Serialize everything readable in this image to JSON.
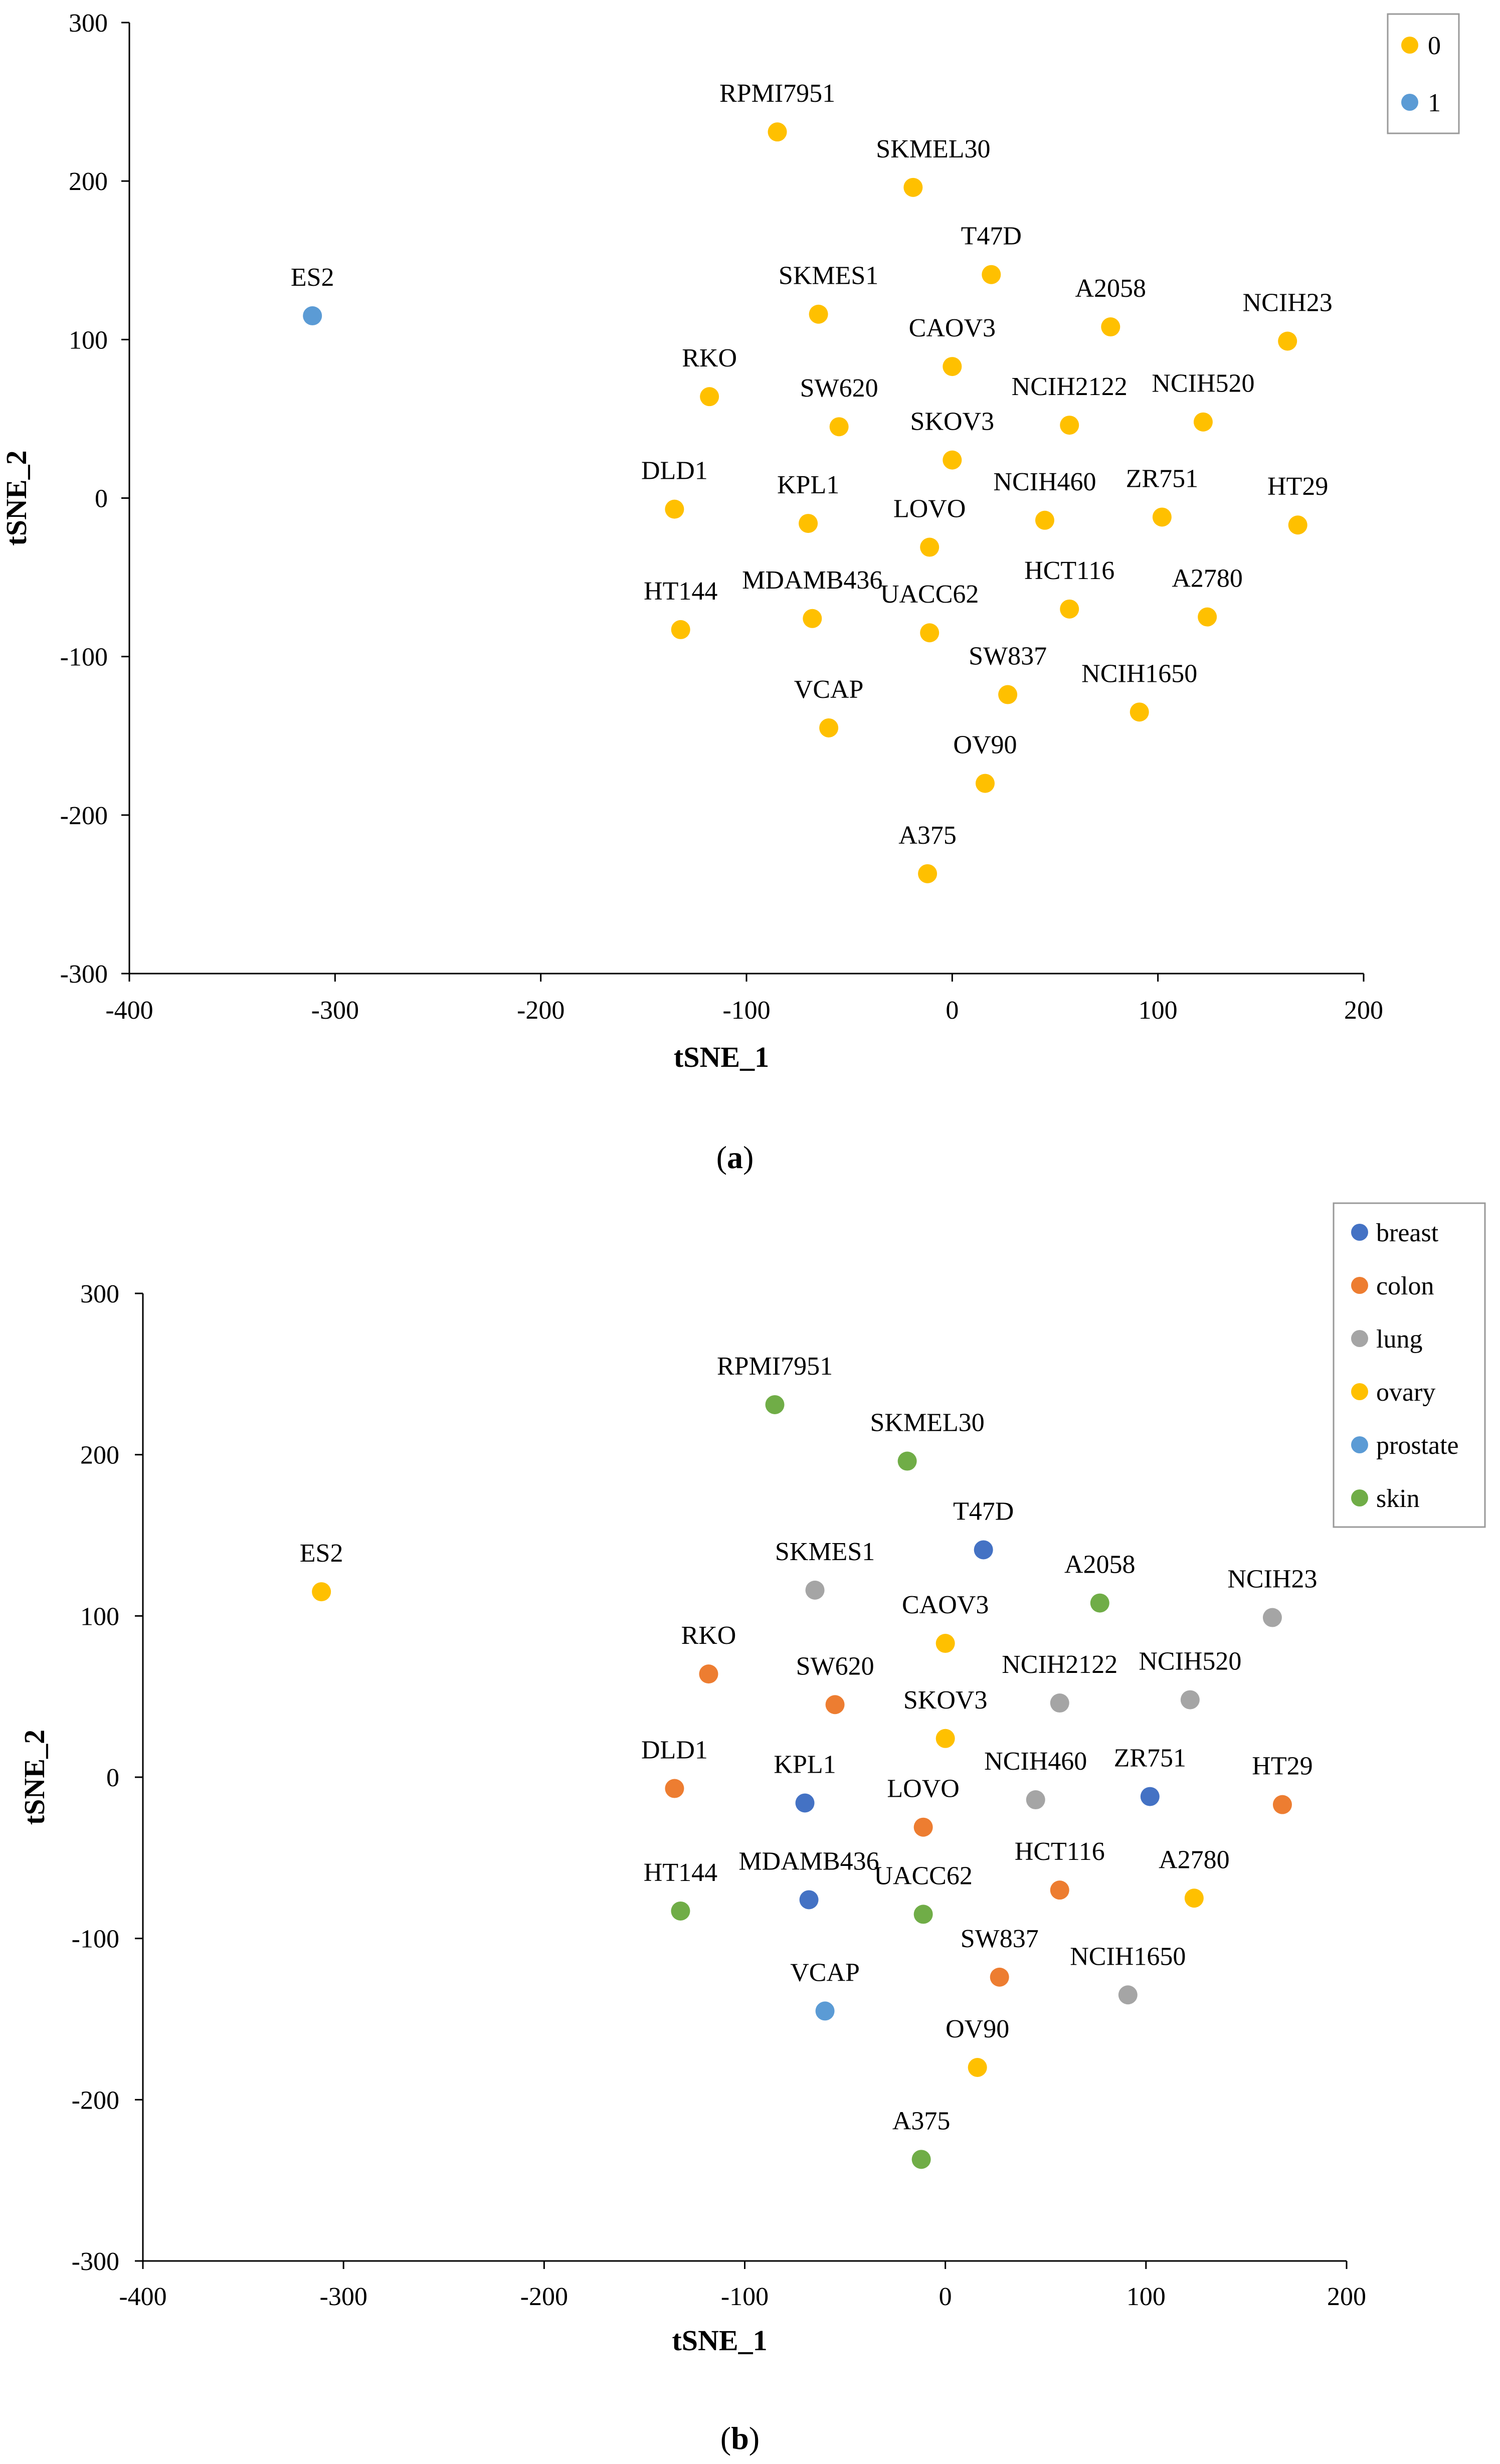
{
  "chart_data": [
    {
      "type": "scatter",
      "panel": "a",
      "caption_open": "(",
      "caption_letter": "a",
      "caption_close": ")",
      "xlabel": "tSNE_1",
      "ylabel": "tSNE_2",
      "xlim": [
        -400,
        200
      ],
      "ylim": [
        -300,
        300
      ],
      "xticks": [
        -400,
        -300,
        -200,
        -100,
        0,
        100,
        200
      ],
      "yticks": [
        -300,
        -200,
        -100,
        0,
        100,
        200,
        300
      ],
      "legend_position": "top-right",
      "legend": [
        {
          "name": "0",
          "color": "#FFC000"
        },
        {
          "name": "1",
          "color": "#5B9BD5"
        }
      ],
      "points": [
        {
          "label": "RPMI7951",
          "x": -85,
          "y": 231,
          "group": "0"
        },
        {
          "label": "SKMEL30",
          "x": -19,
          "y": 196,
          "group": "0"
        },
        {
          "label": "T47D",
          "x": 19,
          "y": 141,
          "group": "0"
        },
        {
          "label": "SKMES1",
          "x": -65,
          "y": 116,
          "group": "0"
        },
        {
          "label": "A2058",
          "x": 77,
          "y": 108,
          "group": "0"
        },
        {
          "label": "NCIH23",
          "x": 163,
          "y": 99,
          "group": "0"
        },
        {
          "label": "CAOV3",
          "x": 0,
          "y": 83,
          "group": "0"
        },
        {
          "label": "RKO",
          "x": -118,
          "y": 64,
          "group": "0"
        },
        {
          "label": "SW620",
          "x": -55,
          "y": 45,
          "group": "0"
        },
        {
          "label": "NCIH2122",
          "x": 57,
          "y": 46,
          "group": "0"
        },
        {
          "label": "NCIH520",
          "x": 122,
          "y": 48,
          "group": "0"
        },
        {
          "label": "SKOV3",
          "x": 0,
          "y": 24,
          "group": "0"
        },
        {
          "label": "DLD1",
          "x": -135,
          "y": -7,
          "group": "0"
        },
        {
          "label": "KPL1",
          "x": -70,
          "y": -16,
          "group": "0"
        },
        {
          "label": "NCIH460",
          "x": 45,
          "y": -14,
          "group": "0"
        },
        {
          "label": "ZR751",
          "x": 102,
          "y": -12,
          "group": "0"
        },
        {
          "label": "HT29",
          "x": 168,
          "y": -17,
          "group": "0"
        },
        {
          "label": "LOVO",
          "x": -11,
          "y": -31,
          "group": "0"
        },
        {
          "label": "HCT116",
          "x": 57,
          "y": -70,
          "group": "0"
        },
        {
          "label": "A2780",
          "x": 124,
          "y": -75,
          "group": "0"
        },
        {
          "label": "HT144",
          "x": -132,
          "y": -83,
          "group": "0"
        },
        {
          "label": "MDAMB436",
          "x": -68,
          "y": -76,
          "group": "0"
        },
        {
          "label": "UACC62",
          "x": -11,
          "y": -85,
          "group": "0"
        },
        {
          "label": "SW837",
          "x": 27,
          "y": -124,
          "group": "0"
        },
        {
          "label": "NCIH1650",
          "x": 91,
          "y": -135,
          "group": "0"
        },
        {
          "label": "VCAP",
          "x": -60,
          "y": -145,
          "group": "0"
        },
        {
          "label": "OV90",
          "x": 16,
          "y": -180,
          "group": "0"
        },
        {
          "label": "A375",
          "x": -12,
          "y": -237,
          "group": "0"
        },
        {
          "label": "ES2",
          "x": -311,
          "y": 115,
          "group": "1"
        }
      ]
    },
    {
      "type": "scatter",
      "panel": "b",
      "caption_open": "(",
      "caption_letter": "b",
      "caption_close": ")",
      "xlabel": "tSNE_1",
      "ylabel": "tSNE_2",
      "xlim": [
        -400,
        200
      ],
      "ylim": [
        -300,
        300
      ],
      "xticks": [
        -400,
        -300,
        -200,
        -100,
        0,
        100,
        200
      ],
      "yticks": [
        -300,
        -200,
        -100,
        0,
        100,
        200,
        300
      ],
      "legend_position": "top-right",
      "legend": [
        {
          "name": "breast",
          "color": "#4472C4"
        },
        {
          "name": "colon",
          "color": "#ED7D31"
        },
        {
          "name": "lung",
          "color": "#A5A5A5"
        },
        {
          "name": "ovary",
          "color": "#FFC000"
        },
        {
          "name": "prostate",
          "color": "#5B9BD5"
        },
        {
          "name": "skin",
          "color": "#70AD47"
        }
      ],
      "points": [
        {
          "label": "RPMI7951",
          "x": -85,
          "y": 231,
          "group": "skin"
        },
        {
          "label": "SKMEL30",
          "x": -19,
          "y": 196,
          "group": "skin"
        },
        {
          "label": "T47D",
          "x": 19,
          "y": 141,
          "group": "breast"
        },
        {
          "label": "SKMES1",
          "x": -65,
          "y": 116,
          "group": "lung"
        },
        {
          "label": "A2058",
          "x": 77,
          "y": 108,
          "group": "skin"
        },
        {
          "label": "NCIH23",
          "x": 163,
          "y": 99,
          "group": "lung"
        },
        {
          "label": "CAOV3",
          "x": 0,
          "y": 83,
          "group": "ovary"
        },
        {
          "label": "RKO",
          "x": -118,
          "y": 64,
          "group": "colon"
        },
        {
          "label": "SW620",
          "x": -55,
          "y": 45,
          "group": "colon"
        },
        {
          "label": "NCIH2122",
          "x": 57,
          "y": 46,
          "group": "lung"
        },
        {
          "label": "NCIH520",
          "x": 122,
          "y": 48,
          "group": "lung"
        },
        {
          "label": "SKOV3",
          "x": 0,
          "y": 24,
          "group": "ovary"
        },
        {
          "label": "DLD1",
          "x": -135,
          "y": -7,
          "group": "colon"
        },
        {
          "label": "KPL1",
          "x": -70,
          "y": -16,
          "group": "breast"
        },
        {
          "label": "NCIH460",
          "x": 45,
          "y": -14,
          "group": "lung"
        },
        {
          "label": "ZR751",
          "x": 102,
          "y": -12,
          "group": "breast"
        },
        {
          "label": "HT29",
          "x": 168,
          "y": -17,
          "group": "colon"
        },
        {
          "label": "LOVO",
          "x": -11,
          "y": -31,
          "group": "colon"
        },
        {
          "label": "HCT116",
          "x": 57,
          "y": -70,
          "group": "colon"
        },
        {
          "label": "A2780",
          "x": 124,
          "y": -75,
          "group": "ovary"
        },
        {
          "label": "HT144",
          "x": -132,
          "y": -83,
          "group": "skin"
        },
        {
          "label": "MDAMB436",
          "x": -68,
          "y": -76,
          "group": "breast"
        },
        {
          "label": "UACC62",
          "x": -11,
          "y": -85,
          "group": "skin"
        },
        {
          "label": "SW837",
          "x": 27,
          "y": -124,
          "group": "colon"
        },
        {
          "label": "NCIH1650",
          "x": 91,
          "y": -135,
          "group": "lung"
        },
        {
          "label": "VCAP",
          "x": -60,
          "y": -145,
          "group": "prostate"
        },
        {
          "label": "OV90",
          "x": 16,
          "y": -180,
          "group": "ovary"
        },
        {
          "label": "A375",
          "x": -12,
          "y": -237,
          "group": "skin"
        },
        {
          "label": "ES2",
          "x": -311,
          "y": 115,
          "group": "ovary"
        }
      ]
    }
  ]
}
